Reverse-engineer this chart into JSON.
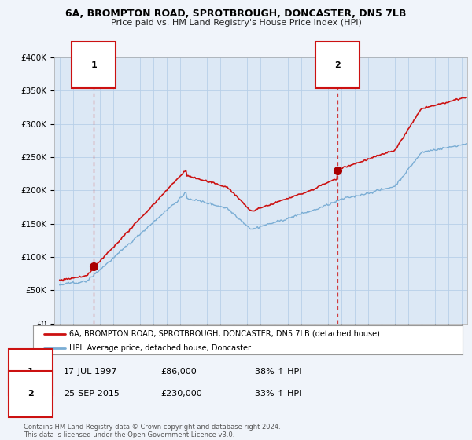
{
  "title_line1": "6A, BROMPTON ROAD, SPROTBROUGH, DONCASTER, DN5 7LB",
  "title_line2": "Price paid vs. HM Land Registry's House Price Index (HPI)",
  "background_color": "#f0f4fa",
  "plot_bg_color": "#dce8f5",
  "ylabel": "",
  "xlabel": "",
  "ylim": [
    0,
    400000
  ],
  "yticks": [
    0,
    50000,
    100000,
    150000,
    200000,
    250000,
    300000,
    350000,
    400000
  ],
  "ytick_labels": [
    "£0",
    "£50K",
    "£100K",
    "£150K",
    "£200K",
    "£250K",
    "£300K",
    "£350K",
    "£400K"
  ],
  "hpi_color": "#7aadd4",
  "price_color": "#cc1111",
  "marker_color": "#aa0000",
  "grid_color": "#b8cfe8",
  "sale1_date": 1997.54,
  "sale1_price": 86000,
  "sale2_date": 2015.73,
  "sale2_price": 230000,
  "legend_label_price": "6A, BROMPTON ROAD, SPROTBROUGH, DONCASTER, DN5 7LB (detached house)",
  "legend_label_hpi": "HPI: Average price, detached house, Doncaster",
  "annotation1_label": "1",
  "annotation2_label": "2",
  "table_row1": [
    "1",
    "17-JUL-1997",
    "£86,000",
    "38% ↑ HPI"
  ],
  "table_row2": [
    "2",
    "25-SEP-2015",
    "£230,000",
    "33% ↑ HPI"
  ],
  "footer_text": "Contains HM Land Registry data © Crown copyright and database right 2024.\nThis data is licensed under the Open Government Licence v3.0.",
  "xmin": 1994.6,
  "xmax": 2025.4
}
